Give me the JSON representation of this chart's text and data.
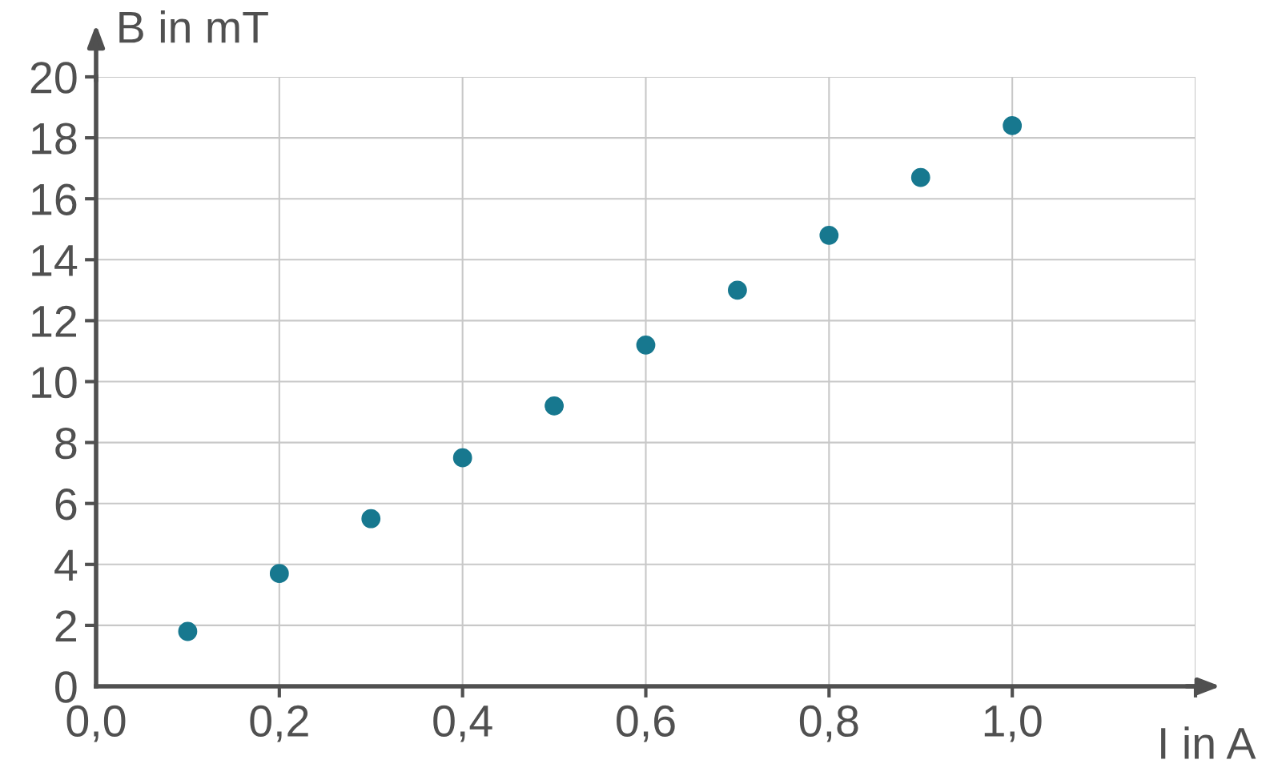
{
  "chart_data": {
    "type": "scatter",
    "xlabel": "I in A",
    "ylabel": "B in mT",
    "x": [
      0.1,
      0.2,
      0.3,
      0.4,
      0.5,
      0.6,
      0.7,
      0.8,
      0.9,
      1.0
    ],
    "series": [
      {
        "color": "#17788f",
        "values": [
          1.8,
          3.7,
          5.5,
          7.5,
          9.2,
          11.2,
          13.0,
          14.8,
          16.7,
          18.4
        ]
      }
    ],
    "xlim": [
      0,
      1.2
    ],
    "ylim": [
      0,
      20
    ],
    "xticks": [
      {
        "value": 0,
        "label": "0,0"
      },
      {
        "value": 0.2,
        "label": "0,2"
      },
      {
        "value": 0.4,
        "label": "0,4"
      },
      {
        "value": 0.6,
        "label": "0,6"
      },
      {
        "value": 0.8,
        "label": "0,8"
      },
      {
        "value": 1.0,
        "label": "1,0"
      },
      {
        "value": 1.2,
        "label": null
      }
    ],
    "yticks": [
      0,
      2,
      4,
      6,
      8,
      10,
      12,
      14,
      16,
      18,
      20
    ],
    "grid": true,
    "marker": "circle"
  }
}
